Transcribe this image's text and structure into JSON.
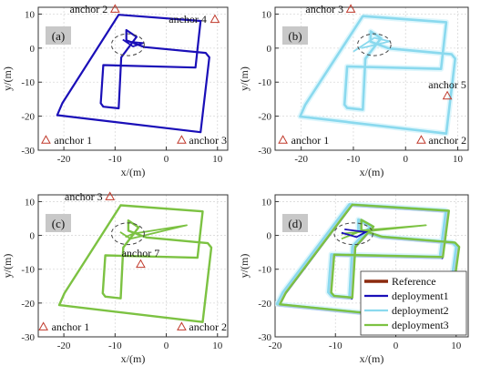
{
  "colors": {
    "reference": "#8b2a0e",
    "deployment1": "#1a0fb8",
    "deployment2": "#8ad9ee",
    "deployment3": "#7cc242",
    "anchor": "#c0392b",
    "axes": "#333333",
    "panel_label_bg": "#c8c8c8"
  },
  "chart_data": {
    "type": "line",
    "legend": {
      "placement": "bottom-right of panel (d)",
      "entries": [
        "Reference",
        "deployment1",
        "deployment2",
        "deployment3"
      ]
    },
    "panels": [
      {
        "id": "a",
        "label": "(a)",
        "xlabel": "x/(m)",
        "ylabel": "y/(m)",
        "xlim": [
          -25,
          12
        ],
        "ylim": [
          -30,
          12
        ],
        "xticks": [
          -20,
          -10,
          0,
          10
        ],
        "yticks": [
          10,
          0,
          -10,
          -20,
          -30
        ],
        "grid": true,
        "series": [
          "deployment1"
        ],
        "anchors": [
          {
            "name": "anchor 2",
            "x": -10,
            "y": 11.5
          },
          {
            "name": "anchor 4",
            "x": 9.5,
            "y": 8.5
          },
          {
            "name": "anchor 1",
            "x": -23.5,
            "y": -27
          },
          {
            "name": "anchor 3",
            "x": 3,
            "y": -27
          }
        ],
        "ellipse": {
          "cx": -7.5,
          "cy": 1,
          "rx": 3.2,
          "ry": 3.2
        }
      },
      {
        "id": "b",
        "label": "(b)",
        "xlabel": "x/(m)",
        "ylabel": "y/(m)",
        "xlim": [
          -25,
          12
        ],
        "ylim": [
          -30,
          12
        ],
        "xticks": [
          -20,
          -10,
          0,
          10
        ],
        "yticks": [
          10,
          0,
          -10,
          -20,
          -30
        ],
        "grid": true,
        "series": [
          "deployment2"
        ],
        "anchors": [
          {
            "name": "anchor 3",
            "x": -10.5,
            "y": 11.5
          },
          {
            "name": "anchor 5",
            "x": 8,
            "y": -14
          },
          {
            "name": "anchor 1",
            "x": -23.5,
            "y": -27
          },
          {
            "name": "anchor 2",
            "x": 3,
            "y": -27
          }
        ],
        "ellipse": {
          "cx": -6,
          "cy": 1,
          "rx": 3.2,
          "ry": 3.2
        }
      },
      {
        "id": "c",
        "label": "(c)",
        "xlabel": "x/(m)",
        "ylabel": "y/(m)",
        "xlim": [
          -25,
          12
        ],
        "ylim": [
          -30,
          12
        ],
        "xticks": [
          -20,
          -10,
          0,
          10
        ],
        "yticks": [
          10,
          0,
          -10,
          -20,
          -30
        ],
        "grid": true,
        "series": [
          "deployment3"
        ],
        "anchors": [
          {
            "name": "anchor 3",
            "x": -11,
            "y": 11.5
          },
          {
            "name": "anchor 7",
            "x": -5,
            "y": -8.5
          },
          {
            "name": "anchor 1",
            "x": -24,
            "y": -27
          },
          {
            "name": "anchor 2",
            "x": 3,
            "y": -27
          }
        ],
        "ellipse": {
          "cx": -7.5,
          "cy": 0.5,
          "rx": 3.2,
          "ry": 3.2
        }
      },
      {
        "id": "d",
        "label": "(d)",
        "xlabel": "x/(m)",
        "ylabel": "y/(m)",
        "xlim": [
          -20,
          12
        ],
        "ylim": [
          -30,
          12
        ],
        "xticks": [
          -20,
          -10,
          0,
          10
        ],
        "yticks": [
          10,
          0,
          -10,
          -20,
          -30
        ],
        "grid": true,
        "series": [
          "reference",
          "deployment1",
          "deployment2",
          "deployment3"
        ],
        "anchors": [],
        "ellipse": {
          "cx": -7,
          "cy": 0.5,
          "rx": 3.2,
          "ry": 3.2
        }
      }
    ]
  }
}
